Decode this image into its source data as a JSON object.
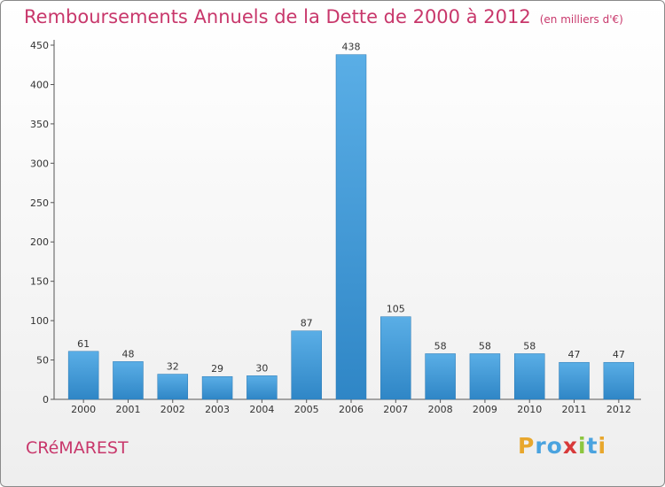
{
  "header": {
    "title": "Remboursements Annuels de la Dette de 2000 à 2012",
    "unit": "(en milliers d'€)"
  },
  "footer": {
    "commune": "CRéMAREST",
    "logo_letters": [
      {
        "ch": "P",
        "color": "#e8a72d"
      },
      {
        "ch": "r",
        "color": "#4aa3df"
      },
      {
        "ch": "o",
        "color": "#4aa3df"
      },
      {
        "ch": "x",
        "color": "#d83a3a"
      },
      {
        "ch": "i",
        "color": "#8cc63f"
      },
      {
        "ch": "t",
        "color": "#4aa3df"
      },
      {
        "ch": "i",
        "color": "#e8a72d"
      }
    ]
  },
  "colors": {
    "bar_top": "#5aaee6",
    "bar_bottom": "#2f86c6",
    "title": "#c8376b"
  },
  "chart_data": {
    "type": "bar",
    "categories": [
      "2000",
      "2001",
      "2002",
      "2003",
      "2004",
      "2005",
      "2006",
      "2007",
      "2008",
      "2009",
      "2010",
      "2011",
      "2012"
    ],
    "values": [
      61,
      48,
      32,
      29,
      30,
      87,
      438,
      105,
      58,
      58,
      58,
      47,
      47
    ],
    "ylim": [
      0,
      450
    ],
    "yticks": [
      0,
      50,
      100,
      150,
      200,
      250,
      300,
      350,
      400,
      450
    ],
    "grid": false,
    "title": "Remboursements Annuels de la Dette de 2000 à 2012",
    "unit": "(en milliers d'€)"
  }
}
